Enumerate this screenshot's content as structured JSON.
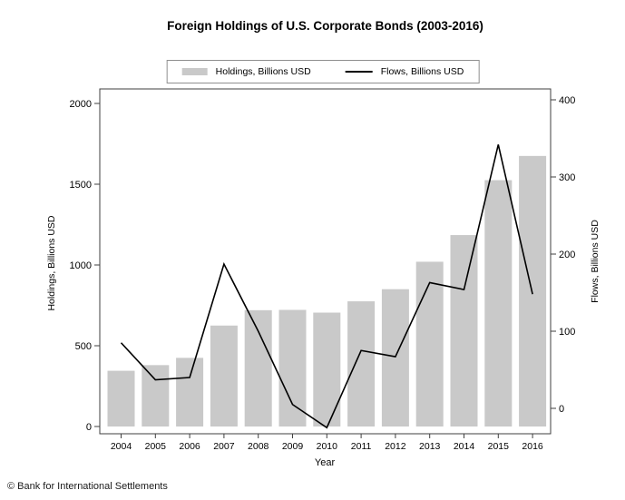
{
  "footer": "© Bank for International Settlements",
  "colors": {
    "bar": "#c9c9c9",
    "line": "#000000",
    "frame": "#3f3f3f",
    "text": "#000000",
    "legend_border": "#8f8f8f",
    "background": "#ffffff"
  },
  "chart_data": {
    "type": "bar+line combo",
    "title": "Foreign Holdings of U.S. Corporate Bonds (2003-2016)",
    "xlabel": "Year",
    "grid": false,
    "legend_position": "top-center",
    "categories": [
      "2004",
      "2005",
      "2006",
      "2007",
      "2008",
      "2009",
      "2010",
      "2011",
      "2012",
      "2013",
      "2014",
      "2015",
      "2016"
    ],
    "series": [
      {
        "name": "Holdings, Billions USD",
        "type": "bar",
        "axis": "left",
        "ylabel": "Holdings, Billions USD",
        "ticks": [
          0,
          500,
          1000,
          1500,
          2000
        ],
        "ylim": [
          0,
          2090
        ],
        "values": [
          345,
          380,
          425,
          625,
          720,
          722,
          705,
          775,
          850,
          1020,
          1185,
          1525,
          1675
        ]
      },
      {
        "name": "Flows, Billions USD",
        "type": "line",
        "axis": "right",
        "ylabel": "Flows, Billions USD",
        "ticks": [
          0,
          100,
          200,
          300,
          400
        ],
        "ylim": [
          -33,
          414
        ],
        "values": [
          85,
          37,
          40,
          187,
          100,
          5,
          -25,
          75,
          67,
          163,
          154,
          342,
          148
        ]
      }
    ]
  }
}
